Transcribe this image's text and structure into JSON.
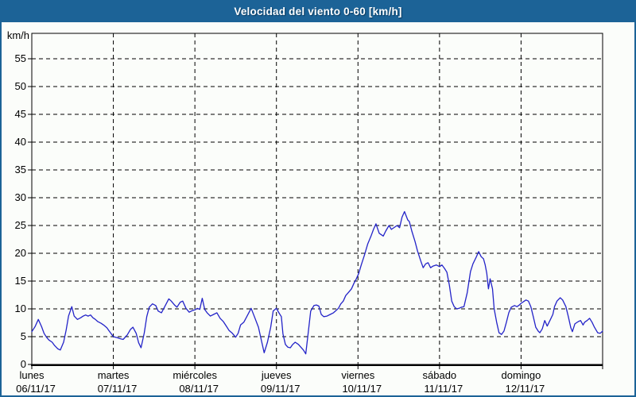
{
  "header": {
    "title": "Velocidad del viento 0-60 [km/h]",
    "bar_color": "#1c6397",
    "text_color": "#ffffff"
  },
  "chart_data": {
    "type": "line",
    "title": "Velocidad del viento 0-60 [km/h]",
    "ylabel": "km/h",
    "unit_label": "km/h",
    "ylim": [
      0,
      60
    ],
    "y_tick_step": 5,
    "grid": true,
    "grid_style": "dashed",
    "line_color": "#2323c8",
    "frame_color": "#000000",
    "x_range_days": [
      0,
      7
    ],
    "categories": [
      {
        "name": "lunes",
        "date": "06/11/17"
      },
      {
        "name": "martes",
        "date": "07/11/17"
      },
      {
        "name": "miércoles",
        "date": "08/11/17"
      },
      {
        "name": "jueves",
        "date": "09/11/17"
      },
      {
        "name": "viernes",
        "date": "10/11/17"
      },
      {
        "name": "sábado",
        "date": "11/11/17"
      },
      {
        "name": "domingo",
        "date": "12/11/17"
      }
    ],
    "points": [
      [
        0.0,
        5.9
      ],
      [
        0.04,
        6.8
      ],
      [
        0.08,
        8.1
      ],
      [
        0.12,
        6.8
      ],
      [
        0.15,
        5.6
      ],
      [
        0.18,
        4.9
      ],
      [
        0.21,
        4.4
      ],
      [
        0.25,
        4.0
      ],
      [
        0.28,
        3.4
      ],
      [
        0.32,
        2.8
      ],
      [
        0.35,
        2.6
      ],
      [
        0.39,
        4.0
      ],
      [
        0.42,
        6.1
      ],
      [
        0.45,
        8.7
      ],
      [
        0.49,
        10.4
      ],
      [
        0.52,
        8.7
      ],
      [
        0.56,
        8.1
      ],
      [
        0.6,
        8.4
      ],
      [
        0.63,
        8.7
      ],
      [
        0.66,
        8.9
      ],
      [
        0.69,
        8.7
      ],
      [
        0.72,
        8.9
      ],
      [
        0.75,
        8.4
      ],
      [
        0.78,
        8.1
      ],
      [
        0.81,
        7.7
      ],
      [
        0.85,
        7.4
      ],
      [
        0.88,
        7.1
      ],
      [
        0.92,
        6.6
      ],
      [
        0.95,
        6.0
      ],
      [
        1.0,
        5.0
      ],
      [
        1.05,
        4.8
      ],
      [
        1.09,
        4.6
      ],
      [
        1.12,
        4.5
      ],
      [
        1.17,
        5.3
      ],
      [
        1.21,
        6.3
      ],
      [
        1.24,
        6.7
      ],
      [
        1.28,
        5.6
      ],
      [
        1.31,
        3.9
      ],
      [
        1.34,
        3.0
      ],
      [
        1.38,
        5.7
      ],
      [
        1.41,
        8.6
      ],
      [
        1.44,
        10.3
      ],
      [
        1.48,
        10.9
      ],
      [
        1.52,
        10.6
      ],
      [
        1.55,
        9.6
      ],
      [
        1.59,
        9.3
      ],
      [
        1.63,
        10.4
      ],
      [
        1.68,
        11.8
      ],
      [
        1.71,
        11.4
      ],
      [
        1.75,
        10.7
      ],
      [
        1.78,
        10.3
      ],
      [
        1.82,
        11.2
      ],
      [
        1.85,
        11.4
      ],
      [
        1.89,
        10.1
      ],
      [
        1.93,
        9.4
      ],
      [
        1.97,
        9.7
      ],
      [
        2.01,
        9.9
      ],
      [
        2.03,
        10.1
      ],
      [
        2.06,
        9.9
      ],
      [
        2.09,
        11.9
      ],
      [
        2.12,
        9.9
      ],
      [
        2.15,
        9.3
      ],
      [
        2.19,
        8.7
      ],
      [
        2.23,
        9.0
      ],
      [
        2.27,
        9.3
      ],
      [
        2.31,
        8.3
      ],
      [
        2.35,
        7.7
      ],
      [
        2.39,
        6.8
      ],
      [
        2.42,
        6.1
      ],
      [
        2.46,
        5.6
      ],
      [
        2.5,
        4.9
      ],
      [
        2.53,
        5.6
      ],
      [
        2.56,
        7.1
      ],
      [
        2.6,
        7.6
      ],
      [
        2.64,
        8.7
      ],
      [
        2.69,
        10.1
      ],
      [
        2.73,
        8.6
      ],
      [
        2.78,
        6.7
      ],
      [
        2.82,
        4.0
      ],
      [
        2.85,
        2.1
      ],
      [
        2.89,
        4.0
      ],
      [
        2.93,
        6.7
      ],
      [
        2.96,
        9.6
      ],
      [
        3.0,
        10.1
      ],
      [
        3.03,
        9.3
      ],
      [
        3.06,
        8.6
      ],
      [
        3.08,
        5.5
      ],
      [
        3.11,
        3.6
      ],
      [
        3.14,
        3.1
      ],
      [
        3.17,
        3.0
      ],
      [
        3.2,
        3.6
      ],
      [
        3.23,
        4.0
      ],
      [
        3.27,
        3.6
      ],
      [
        3.3,
        3.1
      ],
      [
        3.33,
        2.6
      ],
      [
        3.36,
        1.9
      ],
      [
        3.39,
        5.7
      ],
      [
        3.42,
        9.6
      ],
      [
        3.46,
        10.6
      ],
      [
        3.49,
        10.7
      ],
      [
        3.52,
        10.5
      ],
      [
        3.55,
        9.0
      ],
      [
        3.58,
        8.6
      ],
      [
        3.62,
        8.7
      ],
      [
        3.66,
        9.0
      ],
      [
        3.7,
        9.3
      ],
      [
        3.73,
        9.7
      ],
      [
        3.76,
        10.1
      ],
      [
        3.79,
        10.9
      ],
      [
        3.82,
        11.4
      ],
      [
        3.85,
        12.4
      ],
      [
        3.88,
        12.9
      ],
      [
        3.92,
        13.6
      ],
      [
        3.95,
        14.6
      ],
      [
        3.98,
        15.4
      ],
      [
        4.01,
        16.4
      ],
      [
        4.04,
        17.9
      ],
      [
        4.08,
        19.7
      ],
      [
        4.12,
        21.7
      ],
      [
        4.16,
        23.1
      ],
      [
        4.19,
        24.3
      ],
      [
        4.22,
        25.3
      ],
      [
        4.26,
        23.6
      ],
      [
        4.31,
        23.1
      ],
      [
        4.34,
        24.0
      ],
      [
        4.38,
        25.0
      ],
      [
        4.41,
        24.3
      ],
      [
        4.45,
        24.7
      ],
      [
        4.48,
        25.0
      ],
      [
        4.51,
        24.6
      ],
      [
        4.54,
        26.5
      ],
      [
        4.57,
        27.5
      ],
      [
        4.61,
        26.0
      ],
      [
        4.63,
        25.7
      ],
      [
        4.66,
        24.0
      ],
      [
        4.7,
        22.1
      ],
      [
        4.73,
        20.4
      ],
      [
        4.77,
        18.6
      ],
      [
        4.8,
        17.4
      ],
      [
        4.83,
        18.1
      ],
      [
        4.86,
        18.3
      ],
      [
        4.89,
        17.4
      ],
      [
        4.92,
        17.7
      ],
      [
        4.96,
        17.9
      ],
      [
        5.0,
        17.6
      ],
      [
        5.03,
        17.9
      ],
      [
        5.06,
        17.3
      ],
      [
        5.09,
        16.6
      ],
      [
        5.12,
        14.3
      ],
      [
        5.15,
        11.4
      ],
      [
        5.18,
        10.4
      ],
      [
        5.21,
        10.0
      ],
      [
        5.24,
        10.1
      ],
      [
        5.27,
        10.3
      ],
      [
        5.3,
        10.4
      ],
      [
        5.34,
        12.9
      ],
      [
        5.38,
        16.7
      ],
      [
        5.41,
        18.1
      ],
      [
        5.45,
        19.3
      ],
      [
        5.48,
        20.3
      ],
      [
        5.51,
        19.4
      ],
      [
        5.54,
        19.0
      ],
      [
        5.56,
        17.9
      ],
      [
        5.58,
        16.4
      ],
      [
        5.6,
        13.6
      ],
      [
        5.62,
        15.4
      ],
      [
        5.65,
        13.6
      ],
      [
        5.67,
        10.0
      ],
      [
        5.7,
        7.6
      ],
      [
        5.73,
        5.7
      ],
      [
        5.76,
        5.4
      ],
      [
        5.79,
        6.0
      ],
      [
        5.82,
        7.6
      ],
      [
        5.85,
        9.3
      ],
      [
        5.88,
        10.3
      ],
      [
        5.92,
        10.6
      ],
      [
        5.95,
        10.4
      ],
      [
        5.98,
        10.7
      ],
      [
        6.0,
        11.0
      ],
      [
        6.03,
        11.3
      ],
      [
        6.06,
        11.6
      ],
      [
        6.09,
        11.4
      ],
      [
        6.12,
        10.4
      ],
      [
        6.15,
        8.6
      ],
      [
        6.18,
        6.7
      ],
      [
        6.21,
        6.0
      ],
      [
        6.23,
        5.7
      ],
      [
        6.26,
        6.4
      ],
      [
        6.29,
        7.9
      ],
      [
        6.32,
        6.9
      ],
      [
        6.36,
        8.1
      ],
      [
        6.39,
        9.0
      ],
      [
        6.41,
        10.4
      ],
      [
        6.44,
        11.4
      ],
      [
        6.48,
        12.0
      ],
      [
        6.51,
        11.6
      ],
      [
        6.55,
        10.4
      ],
      [
        6.58,
        8.6
      ],
      [
        6.61,
        6.6
      ],
      [
        6.63,
        5.9
      ],
      [
        6.66,
        7.3
      ],
      [
        6.7,
        7.7
      ],
      [
        6.73,
        7.9
      ],
      [
        6.76,
        7.1
      ],
      [
        6.78,
        7.6
      ],
      [
        6.81,
        7.9
      ],
      [
        6.84,
        8.3
      ],
      [
        6.87,
        7.6
      ],
      [
        6.9,
        6.7
      ],
      [
        6.94,
        5.7
      ],
      [
        6.97,
        5.6
      ],
      [
        7.0,
        6.0
      ]
    ]
  }
}
